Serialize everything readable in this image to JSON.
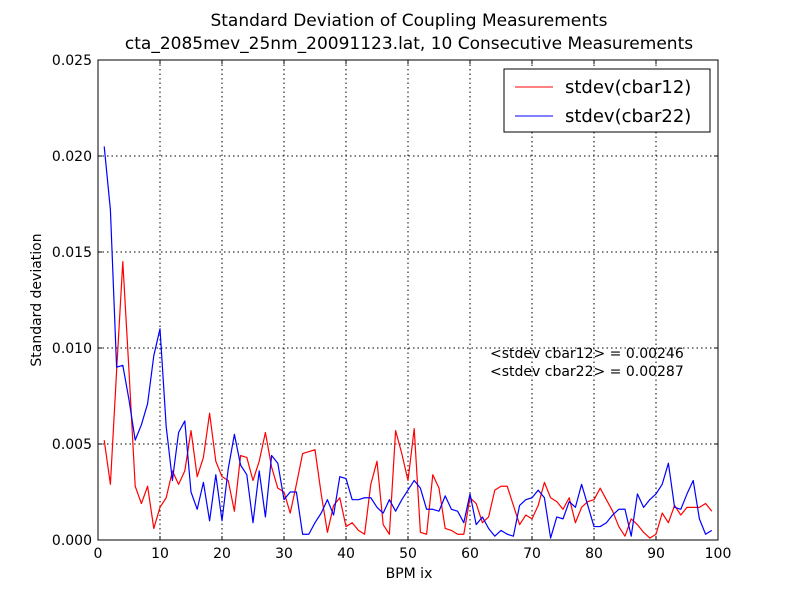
{
  "chart_data": {
    "type": "line",
    "title": "Standard Deviation of Coupling Measurements",
    "subtitle": "cta_2085mev_25nm_20091123.lat, 10 Consecutive Measurements",
    "xlabel": "BPM ix",
    "ylabel": "Standard deviation",
    "xlim": [
      0,
      100
    ],
    "ylim": [
      0,
      0.025
    ],
    "xticks": [
      0,
      10,
      20,
      30,
      40,
      50,
      60,
      70,
      80,
      90,
      100
    ],
    "xtick_labels": [
      "0",
      "10",
      "20",
      "30",
      "40",
      "50",
      "60",
      "70",
      "80",
      "90",
      "100"
    ],
    "yticks": [
      0,
      0.005,
      0.01,
      0.015,
      0.02,
      0.025
    ],
    "ytick_labels": [
      "0.000",
      "0.005",
      "0.010",
      "0.015",
      "0.020",
      "0.025"
    ],
    "grid": true,
    "legend_position": "top-right",
    "annotations": [
      "<stdev cbar12> = 0.00246",
      "<stdev cbar22> = 0.00287"
    ],
    "x": [
      1,
      2,
      3,
      4,
      5,
      6,
      7,
      8,
      9,
      10,
      11,
      12,
      13,
      14,
      15,
      16,
      17,
      18,
      19,
      20,
      21,
      22,
      23,
      24,
      25,
      26,
      27,
      28,
      29,
      30,
      31,
      32,
      33,
      34,
      35,
      36,
      37,
      38,
      39,
      40,
      41,
      42,
      43,
      44,
      45,
      46,
      47,
      48,
      49,
      50,
      51,
      52,
      53,
      54,
      55,
      56,
      57,
      58,
      59,
      60,
      61,
      62,
      63,
      64,
      65,
      66,
      67,
      68,
      69,
      70,
      71,
      72,
      73,
      74,
      75,
      76,
      77,
      78,
      79,
      80,
      81,
      82,
      83,
      84,
      85,
      86,
      87,
      88,
      89,
      90,
      91,
      92,
      93,
      94,
      95,
      96,
      97,
      98,
      99
    ],
    "series": [
      {
        "name": "stdev(cbar12)",
        "color": "#ff0000",
        "values": [
          0.0052,
          0.0029,
          0.0088,
          0.0145,
          0.0088,
          0.0028,
          0.0019,
          0.0028,
          0.0006,
          0.0017,
          0.0022,
          0.0036,
          0.0029,
          0.0036,
          0.0057,
          0.0033,
          0.0043,
          0.0066,
          0.0041,
          0.0033,
          0.0031,
          0.0015,
          0.0044,
          0.0043,
          0.0031,
          0.0041,
          0.0056,
          0.0038,
          0.0027,
          0.0025,
          0.0014,
          0.0029,
          0.0045,
          0.0046,
          0.0047,
          0.0024,
          0.0004,
          0.0018,
          0.0022,
          0.0007,
          0.0009,
          0.0005,
          0.0003,
          0.0029,
          0.0041,
          0.0008,
          0.0003,
          0.0057,
          0.0045,
          0.0031,
          0.0058,
          0.0004,
          0.0003,
          0.0034,
          0.0027,
          0.0006,
          0.0005,
          0.0003,
          0.0003,
          0.0022,
          0.0019,
          0.0009,
          0.0012,
          0.0026,
          0.0028,
          0.0028,
          0.0018,
          0.0008,
          0.0013,
          0.0011,
          0.0018,
          0.003,
          0.0022,
          0.002,
          0.0016,
          0.0022,
          0.0009,
          0.0017,
          0.002,
          0.0021,
          0.0027,
          0.0021,
          0.0015,
          0.0007,
          0.0002,
          0.0011,
          0.0008,
          0.0004,
          0.0001,
          0.0003,
          0.0014,
          0.0009,
          0.0018,
          0.0013,
          0.0017,
          0.0017,
          0.0017,
          0.0019,
          0.0015
        ]
      },
      {
        "name": "stdev(cbar22)",
        "color": "#0000ff",
        "values": [
          0.0205,
          0.0172,
          0.009,
          0.0091,
          0.0073,
          0.0052,
          0.006,
          0.0071,
          0.0096,
          0.011,
          0.0059,
          0.0031,
          0.0056,
          0.0062,
          0.0025,
          0.0016,
          0.003,
          0.001,
          0.0034,
          0.001,
          0.0037,
          0.0055,
          0.0039,
          0.0034,
          0.0009,
          0.0036,
          0.0012,
          0.0044,
          0.004,
          0.0021,
          0.0025,
          0.0025,
          0.0003,
          0.0003,
          0.0009,
          0.0014,
          0.0021,
          0.0013,
          0.0033,
          0.0032,
          0.0021,
          0.0021,
          0.0022,
          0.0022,
          0.0017,
          0.0014,
          0.0021,
          0.0015,
          0.0021,
          0.0026,
          0.0031,
          0.0027,
          0.0016,
          0.0016,
          0.0015,
          0.0023,
          0.0016,
          0.0015,
          0.0009,
          0.0024,
          0.0008,
          0.0012,
          0.0006,
          0.0002,
          0.0005,
          0.0003,
          0.0002,
          0.0018,
          0.0021,
          0.0022,
          0.0026,
          0.0022,
          0.0001,
          0.0012,
          0.0011,
          0.002,
          0.0017,
          0.0029,
          0.0018,
          0.0007,
          0.0007,
          0.0009,
          0.0013,
          0.0016,
          0.0016,
          0.0002,
          0.0024,
          0.0017,
          0.0021,
          0.0024,
          0.0029,
          0.004,
          0.0017,
          0.0016,
          0.0024,
          0.0031,
          0.0011,
          0.0003,
          0.0005
        ]
      }
    ]
  }
}
